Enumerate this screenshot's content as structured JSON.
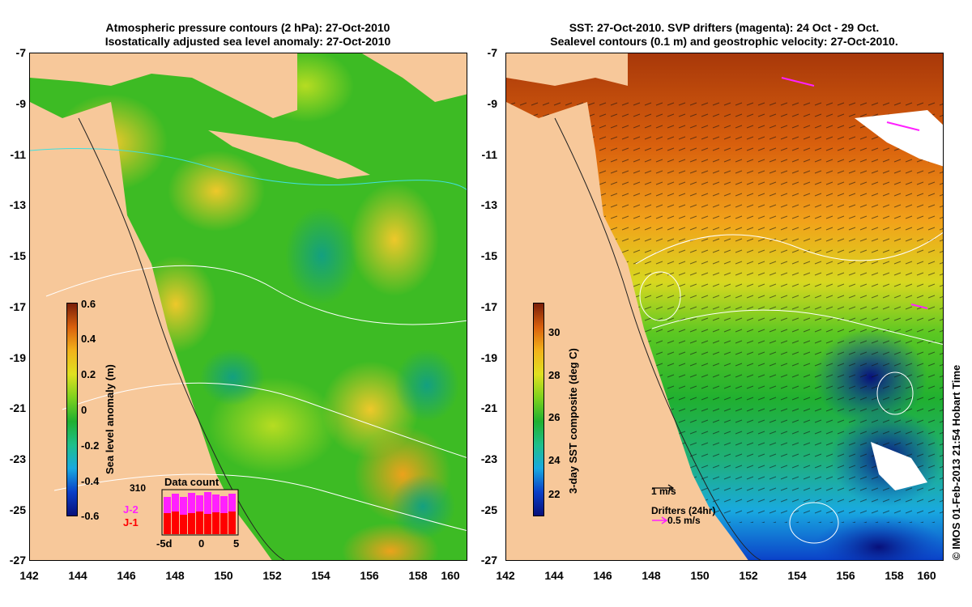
{
  "left_panel": {
    "title_line1": "Atmospheric pressure contours (2 hPa): 27-Oct-2010",
    "title_line2": "Isostatically adjusted sea level anomaly: 27-Oct-2010",
    "y_ticks": [
      "-7",
      "-9",
      "-11",
      "-13",
      "-15",
      "-17",
      "-19",
      "-21",
      "-23",
      "-25",
      "-27"
    ],
    "x_ticks": [
      "142",
      "144",
      "146",
      "148",
      "150",
      "152",
      "154",
      "156",
      "158",
      "160"
    ],
    "colorbar": {
      "label": "Sea level anomaly (m)",
      "ticks": [
        "0.6",
        "0.4",
        "0.2",
        "0",
        "-0.2",
        "-0.4",
        "-0.6"
      ],
      "range": [
        -0.6,
        0.6
      ],
      "colors": [
        "#08107a",
        "#0a3fc8",
        "#19a9e0",
        "#1fbf8a",
        "#20b030",
        "#7ed21e",
        "#e0e020",
        "#f2b21a",
        "#d9600d",
        "#7a1e08"
      ]
    },
    "inset": {
      "title": "Data count",
      "max_label": "310",
      "series": [
        "J-2",
        "J-1"
      ],
      "series_colors": [
        "#ff20ff",
        "#ff0000"
      ],
      "x_ticks": [
        "-5d",
        "0",
        "5"
      ]
    }
  },
  "right_panel": {
    "title_line1": "SST: 27-Oct-2010. SVP drifters (magenta): 24 Oct - 29 Oct.",
    "title_line2": "Sealevel contours (0.1 m) and geostrophic velocity: 27-Oct-2010.",
    "y_ticks": [
      "-7",
      "-9",
      "-11",
      "-13",
      "-15",
      "-17",
      "-19",
      "-21",
      "-23",
      "-25",
      "-27"
    ],
    "x_ticks": [
      "142",
      "144",
      "146",
      "148",
      "150",
      "152",
      "154",
      "156",
      "158",
      "160"
    ],
    "colorbar": {
      "label": "3-day SST composite (deg C)",
      "ticks": [
        "30",
        "28",
        "26",
        "24",
        "22"
      ],
      "range": [
        21,
        31
      ],
      "colors": [
        "#08107a",
        "#0a3fc8",
        "#19a9e0",
        "#1fbf8a",
        "#20b030",
        "#7ed21e",
        "#e0e020",
        "#f2b21a",
        "#d9600d",
        "#7a1e08"
      ]
    },
    "velocity_scale_label": "1 m/s",
    "drifters_label": "Drifters (24hr)",
    "drifters_scale_label": "0.5 m/s",
    "drifter_color": "#ff20ff"
  },
  "map": {
    "lon_range": [
      142,
      160
    ],
    "lat_range": [
      -27,
      -7
    ],
    "land_color": "#f7c89a"
  },
  "credit": "© IMOS 01-Feb-2013 21:54 Hobart Time"
}
